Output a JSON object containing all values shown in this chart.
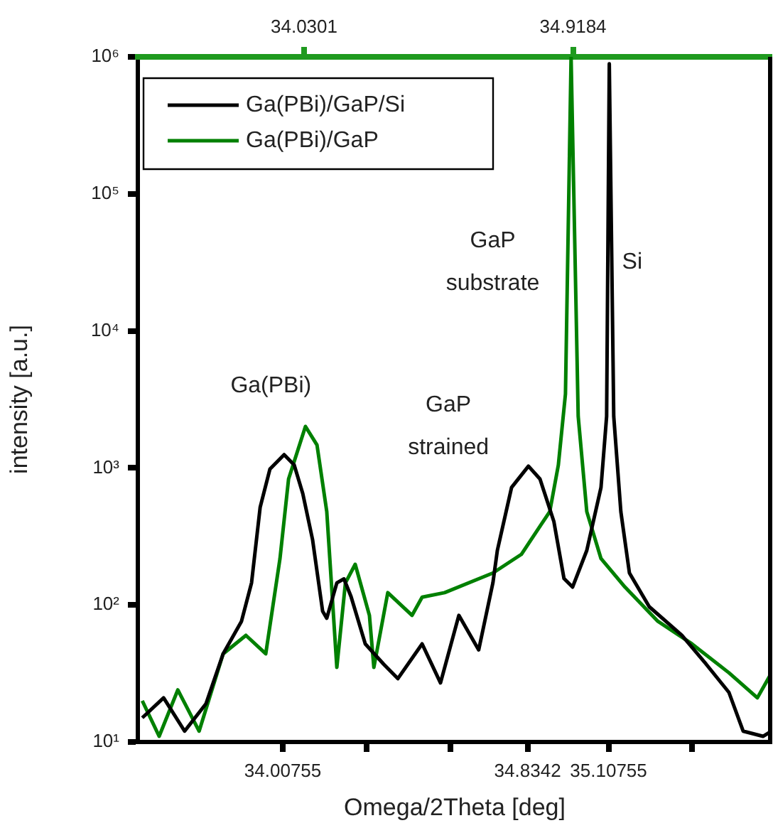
{
  "chart_data": {
    "type": "line",
    "xlabel": "Omega/2Theta [deg]",
    "ylabel": "intensity [a.u.]",
    "xlim": [
      33.518,
      35.658
    ],
    "xticks": [
      34.00755,
      {
        "value": 34.29,
        "label": null
      },
      {
        "value": 34.573,
        "label": null
      },
      34.8342,
      35.10755,
      {
        "value": 35.389,
        "label": null
      }
    ],
    "x2lim": [
      33.481,
      35.574
    ],
    "x2ticks": [
      34.0301,
      34.9184
    ],
    "ylim": [
      10,
      1000000
    ],
    "log": "y",
    "yticks": [
      {
        "value": 10,
        "label": "10¹"
      },
      {
        "value": 100,
        "label": "10²"
      },
      {
        "value": 1000,
        "label": "10³"
      },
      {
        "value": 10000,
        "label": "10⁴"
      },
      {
        "value": 100000,
        "label": "10⁵"
      },
      {
        "value": 1000000,
        "label": "10⁶"
      }
    ],
    "grid": false,
    "legend": "top left",
    "marker": "none",
    "line_style": "solid",
    "series": [
      {
        "name": "Ga(PBi)/GaP/Si",
        "color": "#000000",
        "x": [
          33.533,
          33.605,
          33.676,
          33.748,
          33.806,
          33.868,
          33.902,
          33.931,
          33.964,
          34.012,
          34.046,
          34.075,
          34.108,
          34.142,
          34.156,
          34.19,
          34.214,
          34.238,
          34.286,
          34.348,
          34.396,
          34.478,
          34.54,
          34.602,
          34.669,
          34.717,
          34.732,
          34.78,
          34.837,
          34.876,
          34.923,
          34.957,
          34.986,
          35.034,
          35.082,
          35.101,
          35.11,
          35.125,
          35.149,
          35.178,
          35.245,
          35.355,
          35.437,
          35.514,
          35.562,
          35.629,
          35.658
        ],
        "values": [
          15,
          21,
          12,
          19,
          44,
          76,
          145,
          515,
          980,
          1250,
          1050,
          650,
          300,
          90,
          80,
          145,
          155,
          115,
          52,
          37,
          29,
          52,
          27,
          84,
          47,
          145,
          250,
          720,
          1030,
          830,
          405,
          156,
          135,
          250,
          720,
          2380,
          890000,
          2380,
          480,
          171,
          97,
          60,
          37,
          23,
          12,
          11,
          12
        ]
      },
      {
        "name": "Ga(PBi)/GaP",
        "color": "#008000",
        "x": [
          33.533,
          33.59,
          33.653,
          33.725,
          33.806,
          33.883,
          33.95,
          33.998,
          34.027,
          34.084,
          34.123,
          34.156,
          34.19,
          34.219,
          34.252,
          34.3,
          34.315,
          34.362,
          34.444,
          34.478,
          34.554,
          34.717,
          34.813,
          34.909,
          34.938,
          34.962,
          34.981,
          35.005,
          35.034,
          35.082,
          35.163,
          35.274,
          35.389,
          35.514,
          35.61,
          35.658
        ],
        "values": [
          20,
          11,
          24,
          12,
          44,
          60,
          44,
          218,
          830,
          2010,
          1470,
          480,
          35,
          145,
          198,
          84,
          35,
          123,
          84,
          114,
          123,
          171,
          234,
          480,
          1050,
          3470,
          1000000,
          2380,
          480,
          218,
          135,
          76,
          52,
          32,
          21,
          32
        ]
      }
    ],
    "annotations": [
      "Ga(PBi)",
      "GaP\nstrained",
      "GaP\nsubstrate",
      "Si"
    ]
  }
}
